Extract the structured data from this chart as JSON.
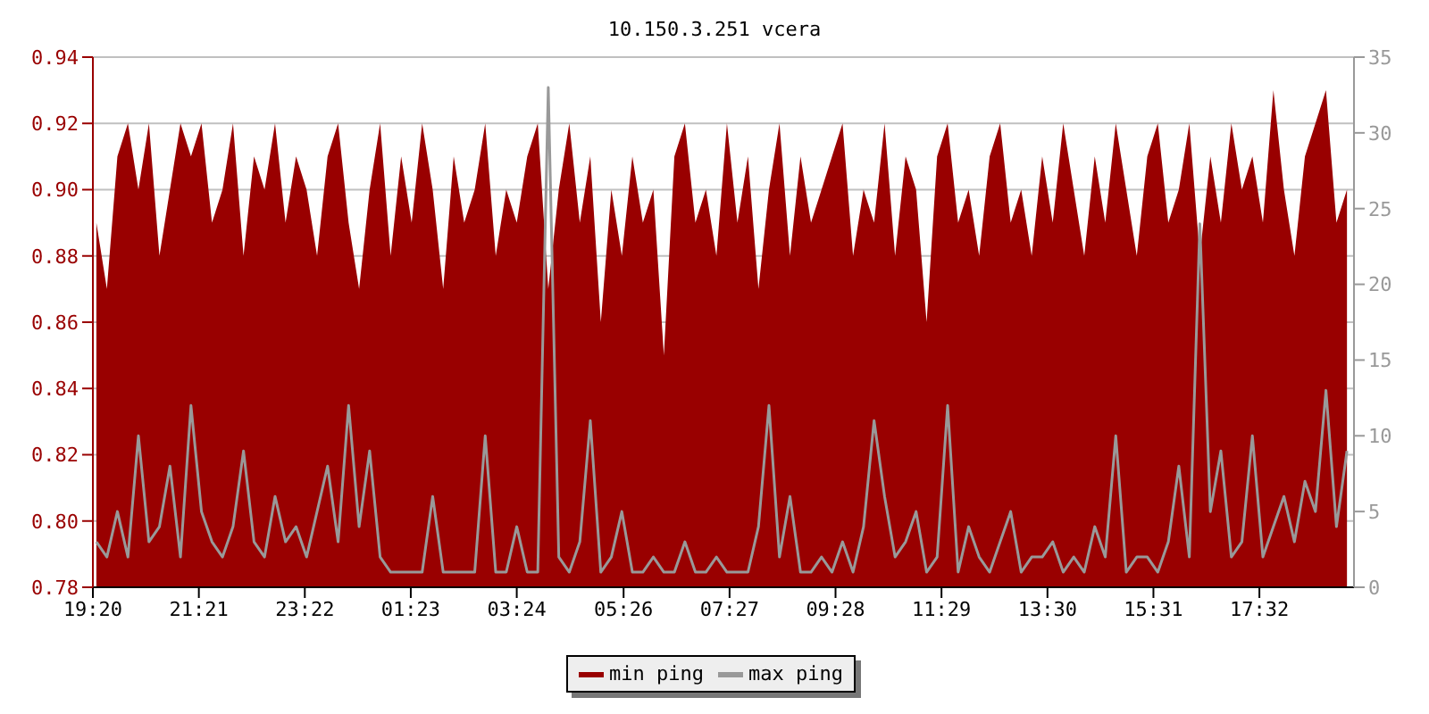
{
  "chart_data": {
    "type": "area",
    "title": "10.150.3.251 vcera",
    "x": [
      "--01-01T19:24",
      "--01-01T19:36",
      "--01-01T19:48",
      "--01-01T20:00",
      "--01-01T20:12",
      "--01-01T20:24",
      "--01-01T20:36",
      "--01-01T20:48",
      "--01-01T21:00",
      "--01-01T21:12",
      "--01-01T21:24",
      "--01-01T21:36",
      "--01-01T21:48",
      "--01-01T22:00",
      "--01-01T22:12",
      "--01-01T22:24",
      "--01-01T22:36",
      "--01-01T22:48",
      "--01-01T23:00",
      "--01-01T23:12",
      "--01-01T23:24",
      "--01-01T23:36",
      "--01-01T23:48",
      "--01-02T00:00",
      "--01-02T00:12",
      "--01-02T00:24",
      "--01-02T00:36",
      "--01-02T00:48",
      "--01-02T01:00",
      "--01-02T01:12",
      "--01-02T01:24",
      "--01-02T01:36",
      "--01-02T01:48",
      "--01-02T02:00",
      "--01-02T02:12",
      "--01-02T02:24",
      "--01-02T02:36",
      "--01-02T02:48",
      "--01-02T03:00",
      "--01-02T03:12",
      "--01-02T03:24",
      "--01-02T03:36",
      "--01-02T03:48",
      "--01-02T04:00",
      "--01-02T04:12",
      "--01-02T04:24",
      "--01-02T04:36",
      "--01-02T04:48",
      "--01-02T05:00",
      "--01-02T05:12",
      "--01-02T05:24",
      "--01-02T05:36",
      "--01-02T05:48",
      "--01-02T06:00",
      "--01-02T06:12",
      "--01-02T06:24",
      "--01-02T06:36",
      "--01-02T06:48",
      "--01-02T07:00",
      "--01-02T07:12",
      "--01-02T07:24",
      "--01-02T07:36",
      "--01-02T07:48",
      "--01-02T08:00",
      "--01-02T08:12",
      "--01-02T08:24",
      "--01-02T08:36",
      "--01-02T08:48",
      "--01-02T09:00",
      "--01-02T09:12",
      "--01-02T09:24",
      "--01-02T09:36",
      "--01-02T09:48",
      "--01-02T10:00",
      "--01-02T10:12",
      "--01-02T10:24",
      "--01-02T10:36",
      "--01-02T10:48",
      "--01-02T11:00",
      "--01-02T11:12",
      "--01-02T11:24",
      "--01-02T11:36",
      "--01-02T11:48",
      "--01-02T12:00",
      "--01-02T12:12",
      "--01-02T12:24",
      "--01-02T12:36",
      "--01-02T12:48",
      "--01-02T13:00",
      "--01-02T13:12",
      "--01-02T13:24",
      "--01-02T13:36",
      "--01-02T13:48",
      "--01-02T14:00",
      "--01-02T14:12",
      "--01-02T14:24",
      "--01-02T14:36",
      "--01-02T14:48",
      "--01-02T15:00",
      "--01-02T15:12",
      "--01-02T15:24",
      "--01-02T15:36",
      "--01-02T15:48",
      "--01-02T16:00",
      "--01-02T16:12",
      "--01-02T16:24",
      "--01-02T16:36",
      "--01-02T16:48",
      "--01-02T17:00",
      "--01-02T17:12",
      "--01-02T17:24",
      "--01-02T17:36",
      "--01-02T17:48",
      "--01-02T18:00",
      "--01-02T18:12",
      "--01-02T18:24",
      "--01-02T18:36",
      "--01-02T18:48",
      "--01-02T19:00",
      "--01-02T19:12"
    ],
    "series": [
      {
        "name": "min ping",
        "color": "#990000",
        "values": [
          0.89,
          0.87,
          0.91,
          0.92,
          0.9,
          0.92,
          0.88,
          0.9,
          0.92,
          0.91,
          0.92,
          0.89,
          0.9,
          0.92,
          0.88,
          0.91,
          0.9,
          0.92,
          0.89,
          0.91,
          0.9,
          0.88,
          0.91,
          0.92,
          0.89,
          0.87,
          0.9,
          0.92,
          0.88,
          0.91,
          0.89,
          0.92,
          0.9,
          0.87,
          0.91,
          0.89,
          0.9,
          0.92,
          0.88,
          0.9,
          0.89,
          0.91,
          0.92,
          0.87,
          0.9,
          0.92,
          0.89,
          0.91,
          0.86,
          0.9,
          0.88,
          0.91,
          0.89,
          0.9,
          0.85,
          0.91,
          0.92,
          0.89,
          0.9,
          0.88,
          0.92,
          0.89,
          0.91,
          0.87,
          0.9,
          0.92,
          0.88,
          0.91,
          0.89,
          0.9,
          0.91,
          0.92,
          0.88,
          0.9,
          0.89,
          0.92,
          0.88,
          0.91,
          0.9,
          0.86,
          0.91,
          0.92,
          0.89,
          0.9,
          0.88,
          0.91,
          0.92,
          0.89,
          0.9,
          0.88,
          0.91,
          0.89,
          0.92,
          0.9,
          0.88,
          0.91,
          0.89,
          0.92,
          0.9,
          0.88,
          0.91,
          0.92,
          0.89,
          0.9,
          0.92,
          0.88,
          0.91,
          0.89,
          0.92,
          0.9,
          0.91,
          0.89,
          0.93,
          0.9,
          0.88,
          0.91,
          0.92,
          0.93,
          0.89,
          0.9
        ]
      },
      {
        "name": "max ping",
        "type": "line",
        "axis": "y2",
        "color": "#999999",
        "values": [
          3,
          2,
          5,
          2,
          10,
          3,
          4,
          8,
          2,
          12,
          5,
          3,
          2,
          4,
          9,
          3,
          2,
          6,
          3,
          4,
          2,
          5,
          8,
          3,
          12,
          4,
          9,
          2,
          1,
          1,
          1,
          1,
          6,
          1,
          1,
          1,
          1,
          10,
          1,
          1,
          4,
          1,
          1,
          33,
          2,
          1,
          3,
          11,
          1,
          2,
          5,
          1,
          1,
          2,
          1,
          1,
          3,
          1,
          1,
          2,
          1,
          1,
          1,
          4,
          12,
          2,
          6,
          1,
          1,
          2,
          1,
          3,
          1,
          4,
          11,
          6,
          2,
          3,
          5,
          1,
          2,
          12,
          1,
          4,
          2,
          1,
          3,
          5,
          1,
          2,
          2,
          3,
          1,
          2,
          1,
          4,
          2,
          10,
          1,
          2,
          2,
          1,
          3,
          8,
          2,
          24,
          5,
          9,
          2,
          3,
          10,
          2,
          4,
          6,
          3,
          7,
          5,
          13,
          4,
          9
        ]
      }
    ],
    "xlim": [
      "--01-01T19:20",
      "--01-02T19:20"
    ],
    "xticks": [
      {
        "value": "--01-01T19:20",
        "label": "19:20"
      },
      {
        "value": "--01-01T21:21",
        "label": "21:21"
      },
      {
        "value": "--01-01T23:22",
        "label": "23:22"
      },
      {
        "value": "--01-02T01:23",
        "label": "01:23"
      },
      {
        "value": "--01-02T03:24",
        "label": "03:24"
      },
      {
        "value": "--01-02T05:26",
        "label": "05:26"
      },
      {
        "value": "--01-02T07:27",
        "label": "07:27"
      },
      {
        "value": "--01-02T09:28",
        "label": "09:28"
      },
      {
        "value": "--01-02T11:29",
        "label": "11:29"
      },
      {
        "value": "--01-02T13:30",
        "label": "13:30"
      },
      {
        "value": "--01-02T15:31",
        "label": "15:31"
      },
      {
        "value": "--01-02T17:32",
        "label": "17:32"
      }
    ],
    "ylim": [
      0.78,
      0.94
    ],
    "yticks": [
      {
        "value": 0.78,
        "label": "0.78"
      },
      {
        "value": 0.8,
        "label": "0.80"
      },
      {
        "value": 0.82,
        "label": "0.82"
      },
      {
        "value": 0.84,
        "label": "0.84"
      },
      {
        "value": 0.86,
        "label": "0.86"
      },
      {
        "value": 0.88,
        "label": "0.88"
      },
      {
        "value": 0.9,
        "label": "0.90"
      },
      {
        "value": 0.92,
        "label": "0.92"
      },
      {
        "value": 0.94,
        "label": "0.94"
      }
    ],
    "y2lim": [
      0,
      35
    ],
    "y2ticks": [
      0,
      5,
      10,
      15,
      20,
      25,
      30,
      35
    ],
    "grid": "y",
    "legend": "bottom",
    "marker": "none"
  }
}
